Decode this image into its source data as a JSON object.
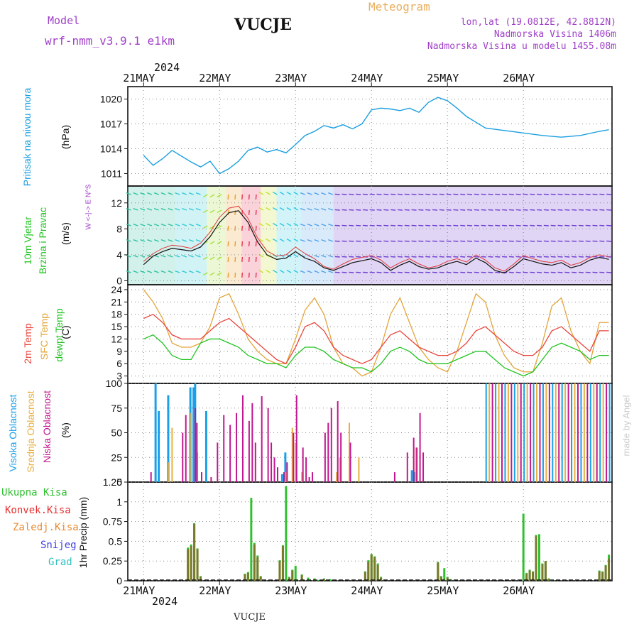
{
  "header": {
    "model_label": "Model",
    "model_name": "wrf-nmm_v3.9.1  e1km",
    "station": "VUCJE",
    "meteogram": "Meteogram",
    "lonlat": "lon,lat (19.0812E, 42.8812N)",
    "altitude": "Nadmorska Visina 1406m",
    "model_altitude": "Nadmorska Visina u modelu 1455.08m",
    "footer_station": "VUCJE",
    "watermark": "made by Angel"
  },
  "colors": {
    "pressure": "#1a9fe0",
    "wind_speed": "#111111",
    "gust": "#e03a3a",
    "t2m": "#e8463c",
    "tsfc": "#e3a53a",
    "dewpt": "#22c422",
    "high_cloud": "#1aa0e8",
    "mid_cloud": "#e8b040",
    "low_cloud": "#c01890",
    "precip": "#30c030",
    "conv": "#e83030",
    "snow": "#4040e0",
    "hail": "#30c0c0"
  },
  "time_axis": {
    "year": "2024",
    "days": [
      "21MAY",
      "22MAY",
      "23MAY",
      "24MAY",
      "25MAY",
      "26MAY"
    ]
  },
  "chart_data": [
    {
      "type": "line",
      "ylabel": "Pritisak na nivou mora",
      "unit": "(hPa)",
      "yticks": [
        "1011",
        "1014",
        "1017",
        "1020"
      ],
      "ylim": [
        1009.5,
        1021.5
      ],
      "x_hours": [
        0,
        3,
        6,
        9,
        12,
        15,
        18,
        21,
        24,
        27,
        30,
        33,
        36,
        39,
        42,
        45,
        48,
        51,
        54,
        57,
        60,
        63,
        66,
        69,
        72,
        75,
        78,
        81,
        84,
        87,
        90,
        93,
        96,
        99,
        102,
        105,
        108,
        114,
        120,
        126,
        132,
        138,
        144,
        147
      ],
      "series": [
        {
          "name": "MSLP",
          "values": [
            1013.2,
            1012.0,
            1012.8,
            1013.8,
            1013.1,
            1012.4,
            1011.8,
            1012.5,
            1011.0,
            1011.6,
            1012.5,
            1013.8,
            1014.2,
            1013.6,
            1013.9,
            1013.5,
            1014.5,
            1015.6,
            1016.1,
            1016.8,
            1016.5,
            1016.9,
            1016.4,
            1017.0,
            1018.7,
            1018.9,
            1018.8,
            1018.6,
            1018.9,
            1018.4,
            1019.6,
            1020.2,
            1019.8,
            1018.9,
            1017.9,
            1017.2,
            1016.5,
            1016.2,
            1015.9,
            1015.6,
            1015.4,
            1015.6,
            1016.1,
            1016.3
          ]
        }
      ]
    },
    {
      "type": "line",
      "ylabel": "10m Vjetar",
      "ylabel2": "Brzina i Pravac",
      "unit": "(m/s)",
      "compass": "W <-|-> E  N^S",
      "yticks": [
        "0",
        "4",
        "8",
        "12"
      ],
      "ylim": [
        -0.6,
        14.6
      ],
      "x_hours": [
        0,
        3,
        6,
        9,
        12,
        15,
        18,
        21,
        24,
        27,
        30,
        33,
        36,
        39,
        42,
        45,
        48,
        51,
        54,
        57,
        60,
        63,
        66,
        69,
        72,
        75,
        78,
        81,
        84,
        87,
        90,
        93,
        96,
        99,
        102,
        105,
        108,
        111,
        114,
        117,
        120,
        123,
        126,
        129,
        132,
        135,
        138,
        141,
        144,
        147
      ],
      "series": [
        {
          "name": "speed",
          "values": [
            2.5,
            3.8,
            4.5,
            5.0,
            4.8,
            4.6,
            5.2,
            6.8,
            9.0,
            10.5,
            10.8,
            9.0,
            6.0,
            4.0,
            3.3,
            3.5,
            4.5,
            3.5,
            3.0,
            2.0,
            1.6,
            2.2,
            2.8,
            3.1,
            3.4,
            2.8,
            1.6,
            2.4,
            3.0,
            2.2,
            1.8,
            2.0,
            2.6,
            3.0,
            2.5,
            3.5,
            2.8,
            1.6,
            1.2,
            2.2,
            3.4,
            3.0,
            2.6,
            2.4,
            2.8,
            2.0,
            2.4,
            3.2,
            3.6,
            3.3
          ]
        },
        {
          "name": "gust",
          "values": [
            3.0,
            4.2,
            5.0,
            5.5,
            5.3,
            5.0,
            5.8,
            7.5,
            9.8,
            11.2,
            11.5,
            9.6,
            6.6,
            4.6,
            3.8,
            4.0,
            5.2,
            4.2,
            3.4,
            2.2,
            1.8,
            2.6,
            3.3,
            3.6,
            3.9,
            3.2,
            2.0,
            2.8,
            3.4,
            2.6,
            2.0,
            2.3,
            3.0,
            3.4,
            2.9,
            4.0,
            3.2,
            2.0,
            1.5,
            2.6,
            3.9,
            3.4,
            3.0,
            2.8,
            3.2,
            2.4,
            2.8,
            3.6,
            4.0,
            3.7
          ]
        }
      ]
    },
    {
      "type": "line",
      "ylabel": "2m Temp",
      "ylabel2": "SFC Temp",
      "ylabel3": "dewpt Temp",
      "unit": "(C)",
      "yticks": [
        "3",
        "6",
        "9",
        "12",
        "15",
        "18",
        "21",
        "24"
      ],
      "ylim": [
        1.2,
        25.2
      ],
      "x_hours": [
        0,
        3,
        6,
        9,
        12,
        15,
        18,
        21,
        24,
        27,
        30,
        33,
        36,
        39,
        42,
        45,
        48,
        51,
        54,
        57,
        60,
        63,
        66,
        69,
        72,
        75,
        78,
        81,
        84,
        87,
        90,
        93,
        96,
        99,
        102,
        105,
        108,
        111,
        114,
        117,
        120,
        123,
        126,
        129,
        132,
        135,
        138,
        141,
        144,
        147
      ],
      "series": [
        {
          "name": "2m Temp",
          "values": [
            17,
            18,
            16,
            13,
            12,
            12,
            12,
            14,
            16,
            17,
            15,
            13,
            11,
            9,
            7,
            6,
            10,
            15,
            16,
            14,
            10,
            8,
            7,
            6,
            7,
            10,
            13,
            14,
            12,
            10,
            9,
            8,
            8,
            9,
            11,
            14,
            15,
            13,
            11,
            9,
            8,
            8,
            10,
            14,
            15,
            13,
            11,
            9,
            14,
            14
          ]
        },
        {
          "name": "SFC Temp",
          "values": [
            24,
            21,
            17,
            11,
            10,
            10,
            11,
            15,
            22,
            23,
            18,
            12,
            9,
            7,
            6,
            6,
            12,
            19,
            22,
            18,
            10,
            6,
            5,
            3,
            4,
            10,
            18,
            22,
            16,
            10,
            7,
            5,
            4,
            9,
            16,
            23,
            21,
            13,
            8,
            5,
            4,
            4,
            11,
            20,
            22,
            14,
            9,
            6,
            16,
            16
          ]
        },
        {
          "name": "dewpt Temp",
          "values": [
            12,
            13,
            11,
            8,
            7,
            7,
            11,
            12,
            12,
            11,
            10,
            8,
            7,
            6,
            6,
            5,
            8,
            10,
            10,
            9,
            7,
            6,
            5,
            5,
            4,
            6,
            9,
            10,
            9,
            7,
            6,
            6,
            6,
            7,
            8,
            9,
            9,
            7,
            5,
            4,
            3,
            4,
            7,
            10,
            11,
            10,
            9,
            7,
            8,
            8
          ]
        }
      ]
    },
    {
      "type": "bar",
      "ylabel": "Visoka Oblacnost",
      "ylabel2": "Srednja Oblacnost",
      "ylabel3": "Niska Oblacnost",
      "unit": "(%)",
      "yticks": [
        "0",
        "25",
        "50",
        "75",
        "100"
      ],
      "ylim": [
        0,
        100
      ],
      "x_hours": [
        2,
        4,
        5,
        6,
        7,
        8,
        9,
        12,
        13,
        15,
        16,
        16.5,
        17,
        18,
        20,
        21,
        23,
        25,
        27,
        29,
        31,
        33,
        34,
        35,
        37,
        39,
        40,
        41,
        42,
        44,
        45,
        47,
        48,
        50,
        51,
        52,
        53,
        55,
        57,
        58,
        59,
        61,
        62,
        65,
        68,
        69,
        70,
        71,
        72,
        73,
        74,
        79,
        83,
        85,
        86,
        87,
        88,
        90,
        91
      ],
      "series": [
        {
          "name": "high",
          "values": [
            0,
            100,
            72,
            0,
            0,
            88,
            0,
            0,
            0,
            96,
            96,
            100,
            0,
            0,
            72,
            0,
            0,
            0,
            0,
            0,
            0,
            0,
            0,
            0,
            0,
            0,
            0,
            0,
            0,
            8,
            30,
            0,
            0,
            0,
            0,
            0,
            0,
            0,
            0,
            0,
            0,
            0,
            0,
            0,
            0,
            0,
            0,
            0,
            0,
            0,
            0,
            0,
            0,
            12,
            10,
            0,
            0,
            0,
            0
          ]
        },
        {
          "name": "mid",
          "values": [
            0,
            0,
            0,
            0,
            0,
            20,
            55,
            0,
            0,
            70,
            0,
            0,
            30,
            0,
            0,
            0,
            0,
            0,
            0,
            0,
            0,
            0,
            0,
            0,
            0,
            0,
            0,
            0,
            0,
            0,
            10,
            55,
            40,
            10,
            0,
            0,
            0,
            0,
            0,
            0,
            0,
            10,
            25,
            60,
            25,
            0,
            0,
            0,
            0,
            0,
            0,
            0,
            0,
            0,
            35,
            0,
            0,
            0,
            0
          ]
        },
        {
          "name": "low",
          "values": [
            10,
            0,
            0,
            0,
            0,
            0,
            0,
            50,
            68,
            0,
            75,
            60,
            0,
            10,
            0,
            5,
            40,
            68,
            58,
            70,
            88,
            62,
            80,
            40,
            87,
            75,
            40,
            25,
            15,
            10,
            20,
            50,
            88,
            35,
            25,
            5,
            10,
            0,
            50,
            60,
            75,
            82,
            50,
            40,
            0,
            0,
            0,
            0,
            0,
            0,
            0,
            10,
            30,
            45,
            35,
            70,
            30,
            0,
            0
          ]
        }
      ],
      "overcast_from_hours": 108,
      "overcast_to_hours": 148
    },
    {
      "type": "bar",
      "ylabel": "1hr Precip (mm)",
      "legend": [
        "Ukupna Kisa",
        "Konvek.Kisa",
        "Zaledj.Kisa",
        "Snijeg",
        "Grad"
      ],
      "yticks": [
        "0",
        "0.25",
        "0.5",
        "0.75",
        "1",
        "1.25"
      ],
      "ylim": [
        0,
        1.25
      ],
      "x_hours": [
        14,
        15,
        16,
        17,
        18,
        32,
        33,
        34,
        35,
        36,
        37,
        43,
        44,
        45,
        46,
        47,
        48,
        50,
        52,
        54,
        55,
        57,
        59,
        70,
        71,
        72,
        73,
        74,
        75,
        93,
        94,
        95,
        96,
        97,
        120,
        121,
        122,
        123,
        124,
        125,
        126,
        127,
        128,
        129,
        144,
        145,
        146,
        147
      ],
      "series": [
        {
          "name": "total",
          "values": [
            0.42,
            0.46,
            0.73,
            0.41,
            0.06,
            0.09,
            0.11,
            1.05,
            0.48,
            0.32,
            0.06,
            0.26,
            0.45,
            1.2,
            0.05,
            0.14,
            0.19,
            0.08,
            0.04,
            0.03,
            0.01,
            0.03,
            0.02,
            0.12,
            0.26,
            0.34,
            0.31,
            0.22,
            0.05,
            0.24,
            0.06,
            0.16,
            0.05,
            0.02,
            0.85,
            0.1,
            0.14,
            0.12,
            0.58,
            0.59,
            0.22,
            0.25,
            0.03,
            0.01,
            0.13,
            0.12,
            0.2,
            0.33
          ]
        },
        {
          "name": "conv",
          "values": [
            0.4,
            0.44,
            0.72,
            0.4,
            0.05,
            0.08,
            0.1,
            0.0,
            0.46,
            0.3,
            0.05,
            0.25,
            0.44,
            0.0,
            0.04,
            0.13,
            0.0,
            0.07,
            0.0,
            0.02,
            0.0,
            0.02,
            0.0,
            0.11,
            0.24,
            0.33,
            0.3,
            0.2,
            0.04,
            0.23,
            0.05,
            0.0,
            0.04,
            0.0,
            0.0,
            0.09,
            0.13,
            0.11,
            0.57,
            0.0,
            0.21,
            0.25,
            0.02,
            0.0,
            0.12,
            0.11,
            0.19,
            0.28
          ]
        }
      ]
    }
  ]
}
